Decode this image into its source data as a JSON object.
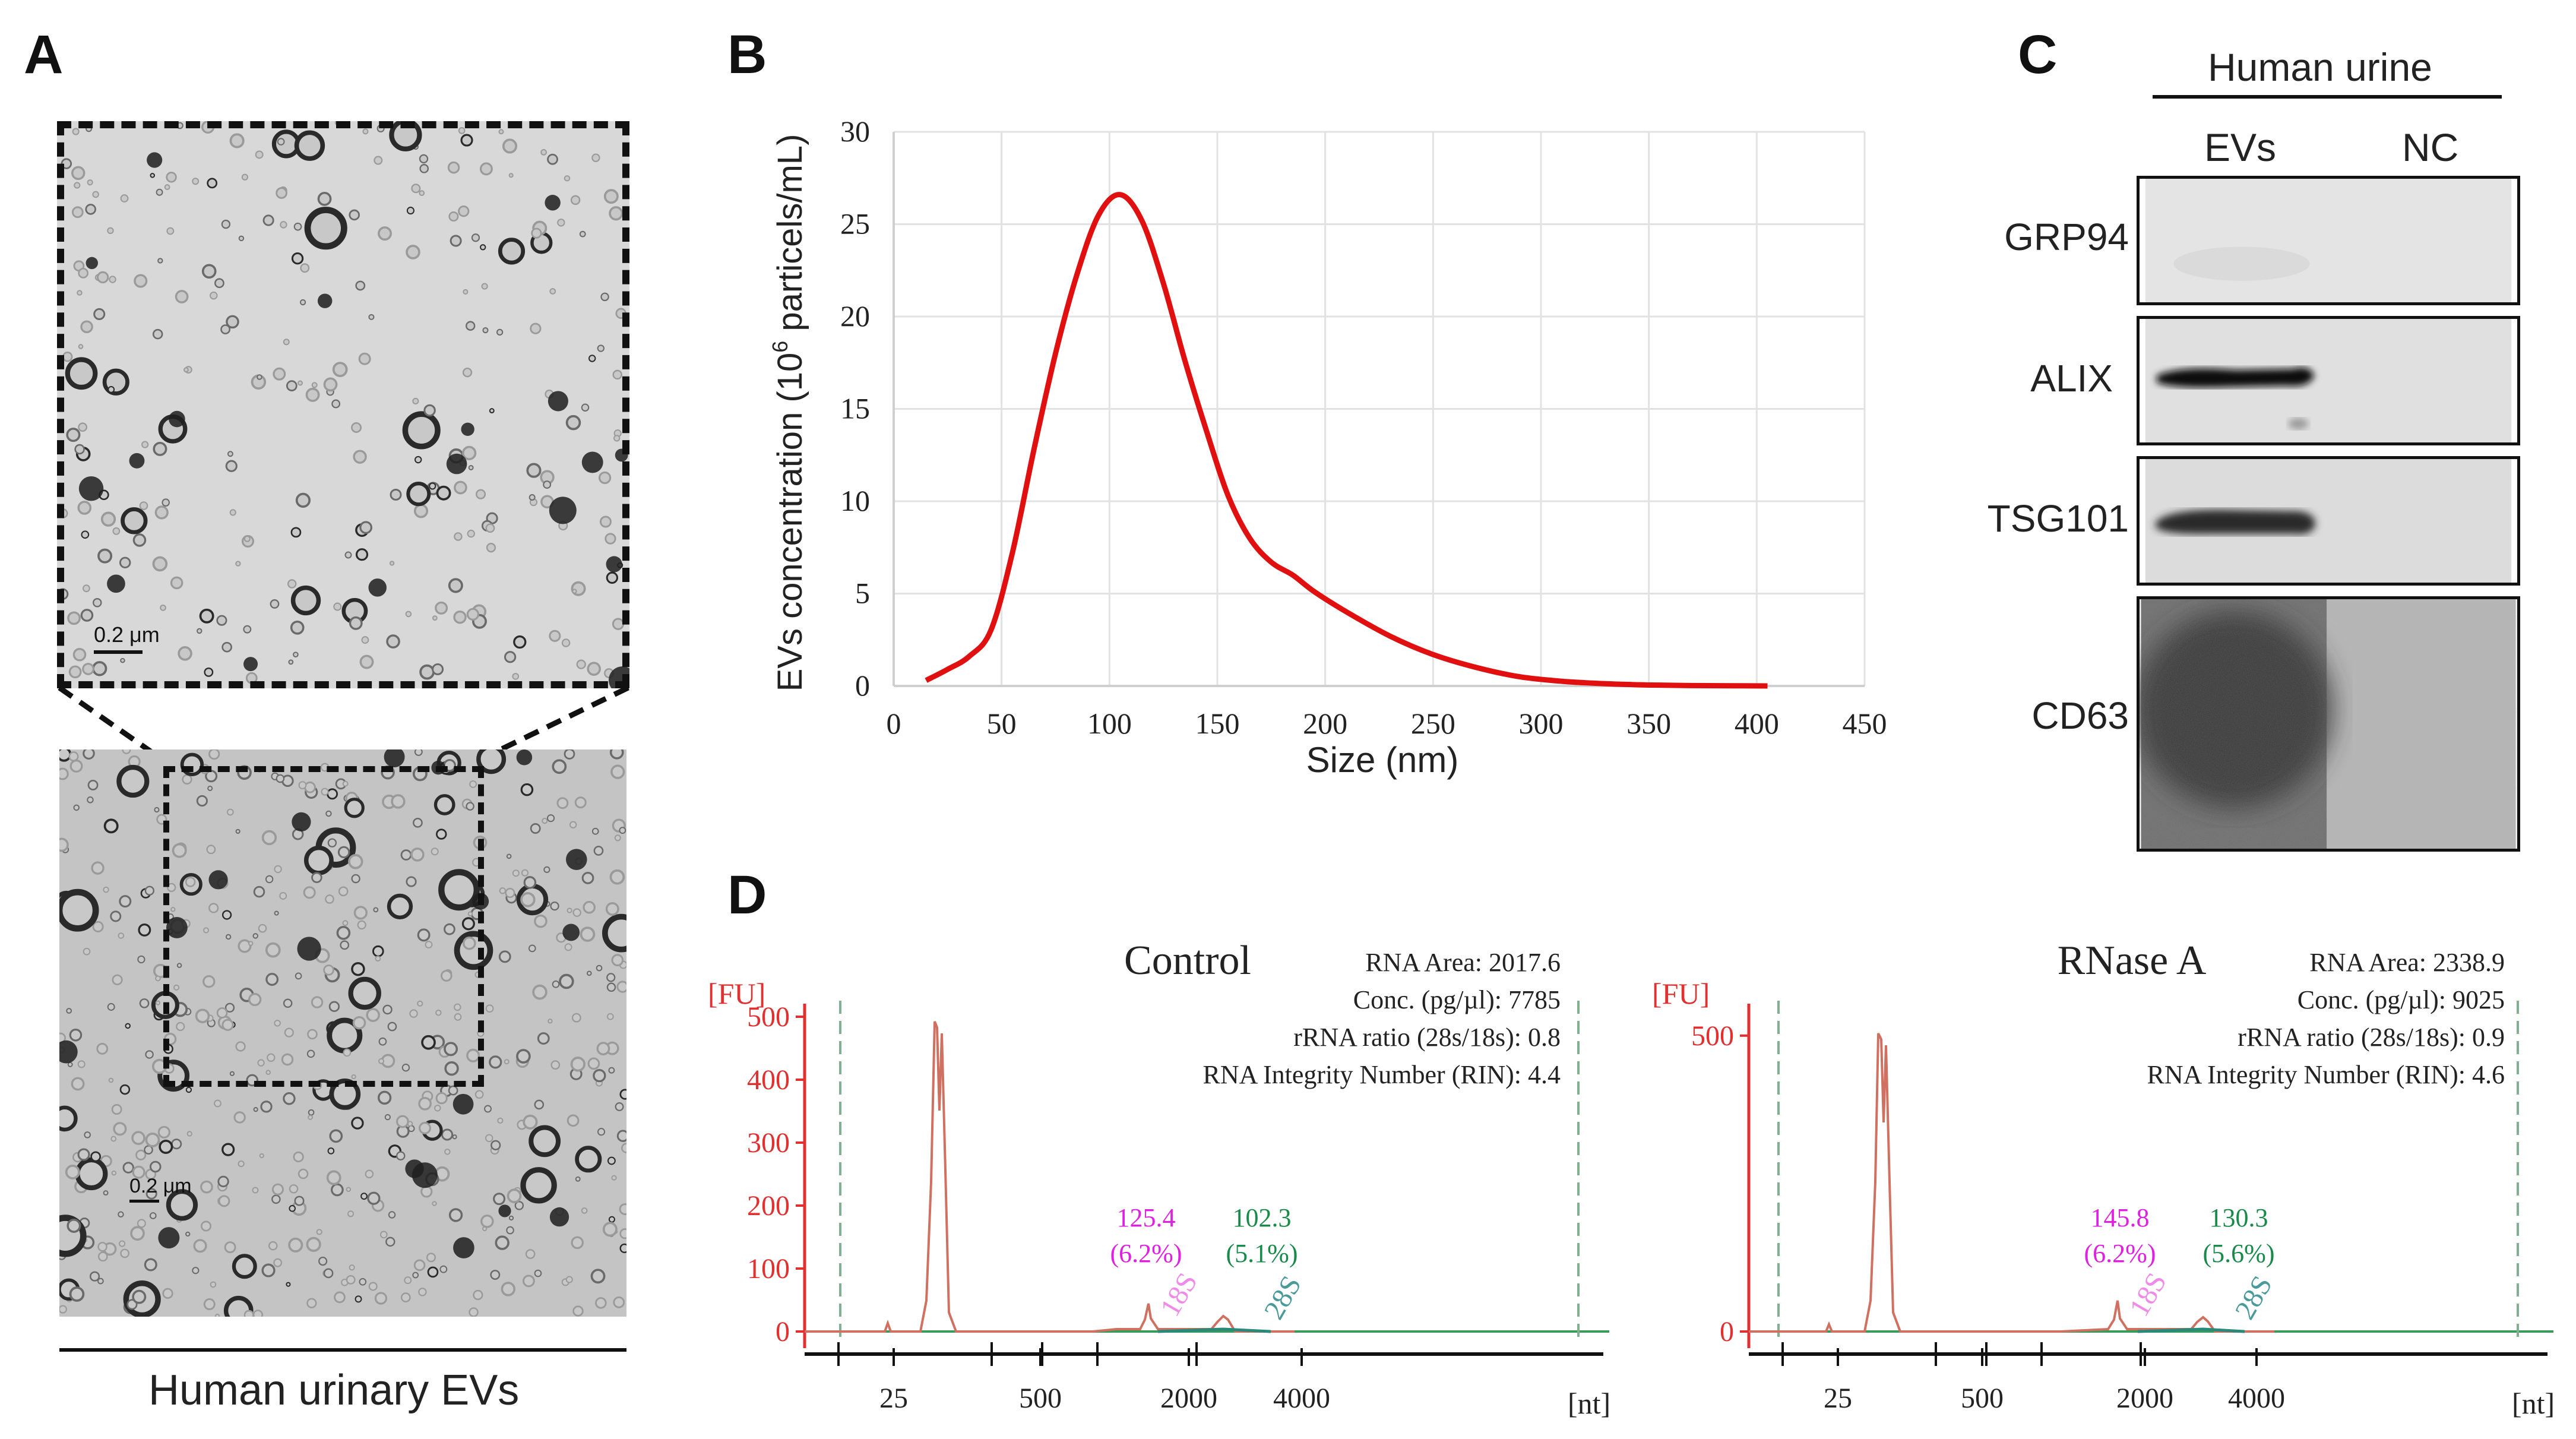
{
  "panels": {
    "a": "A",
    "b": "B",
    "c": "C",
    "d": "D"
  },
  "panel_a": {
    "scale_bar_label": "0.2 μm",
    "scale_bar_label_inset": "0.2 μm",
    "caption": "Human urinary EVs"
  },
  "panel_c": {
    "group_header": "Human urine",
    "lane_labels": [
      "EVs",
      "NC"
    ],
    "proteins": [
      "GRP94",
      "ALIX",
      "TSG101",
      "CD63"
    ],
    "band_intensity": {
      "GRP94": [
        0.05,
        0.03
      ],
      "ALIX": [
        1.0,
        0.02
      ],
      "TSG101": [
        0.85,
        0.03
      ],
      "CD63": [
        0.7,
        0.1
      ]
    }
  },
  "panel_d": {
    "control": {
      "title": "Control",
      "fu_label": "[FU]",
      "nt_label": "[nt]",
      "stats": [
        "RNA Area: 2017.6",
        "Conc. (pg/µl): 7785",
        "rRNA ratio (28s/18s): 0.8",
        "RNA Integrity Number (RIN): 4.4"
      ],
      "peak18s_value": "125.4",
      "peak18s_pct": "(6.2%)",
      "peak28s_value": "102.3",
      "peak28s_pct": "(5.1%)",
      "label18s": "18S",
      "label28s": "28S",
      "y_ticks": [
        "0",
        "100",
        "200",
        "300",
        "400",
        "500"
      ],
      "x_ticks": [
        "25",
        "500",
        "2000",
        "4000"
      ]
    },
    "rnase": {
      "title": "RNase A",
      "fu_label": "[FU]",
      "nt_label": "[nt]",
      "stats": [
        "RNA Area: 2338.9",
        "Conc. (pg/µl): 9025",
        "rRNA ratio (28s/18s): 0.9",
        "RNA Integrity Number (RIN): 4.6"
      ],
      "peak18s_value": "145.8",
      "peak18s_pct": "(6.2%)",
      "peak28s_value": "130.3",
      "peak28s_pct": "(5.6%)",
      "label18s": "18S",
      "label28s": "28S",
      "y_ticks": [
        "0",
        "500"
      ],
      "x_ticks": [
        "25",
        "500",
        "2000",
        "4000"
      ]
    }
  },
  "chart_data": {
    "type": "line",
    "title": "",
    "xlabel": "Size (nm)",
    "ylabel_prefix": "EVs  concentration (10",
    "ylabel_sup": "6",
    "ylabel_suffix": " particels/mL)",
    "xlim": [
      0,
      450
    ],
    "ylim": [
      0,
      30
    ],
    "x_ticks": [
      "0",
      "50",
      "100",
      "150",
      "200",
      "250",
      "300",
      "350",
      "400",
      "450"
    ],
    "y_ticks": [
      "0",
      "5",
      "10",
      "15",
      "20",
      "25",
      "30"
    ],
    "grid": true,
    "series_color": "#e01010",
    "series": [
      {
        "name": "EVs",
        "x": [
          15,
          25,
          35,
          45,
          55,
          65,
          75,
          85,
          95,
          105,
          115,
          125,
          135,
          145,
          155,
          165,
          175,
          185,
          195,
          210,
          230,
          250,
          270,
          290,
          310,
          330,
          350,
          370,
          390,
          405
        ],
        "y": [
          0.3,
          0.9,
          1.6,
          3.0,
          7.2,
          12.8,
          18.0,
          22.3,
          25.5,
          26.6,
          25.2,
          21.8,
          17.6,
          13.8,
          10.3,
          8.0,
          6.7,
          6.0,
          5.1,
          4.0,
          2.7,
          1.7,
          1.0,
          0.5,
          0.25,
          0.12,
          0.05,
          0.02,
          0.01,
          0.0
        ]
      }
    ]
  }
}
